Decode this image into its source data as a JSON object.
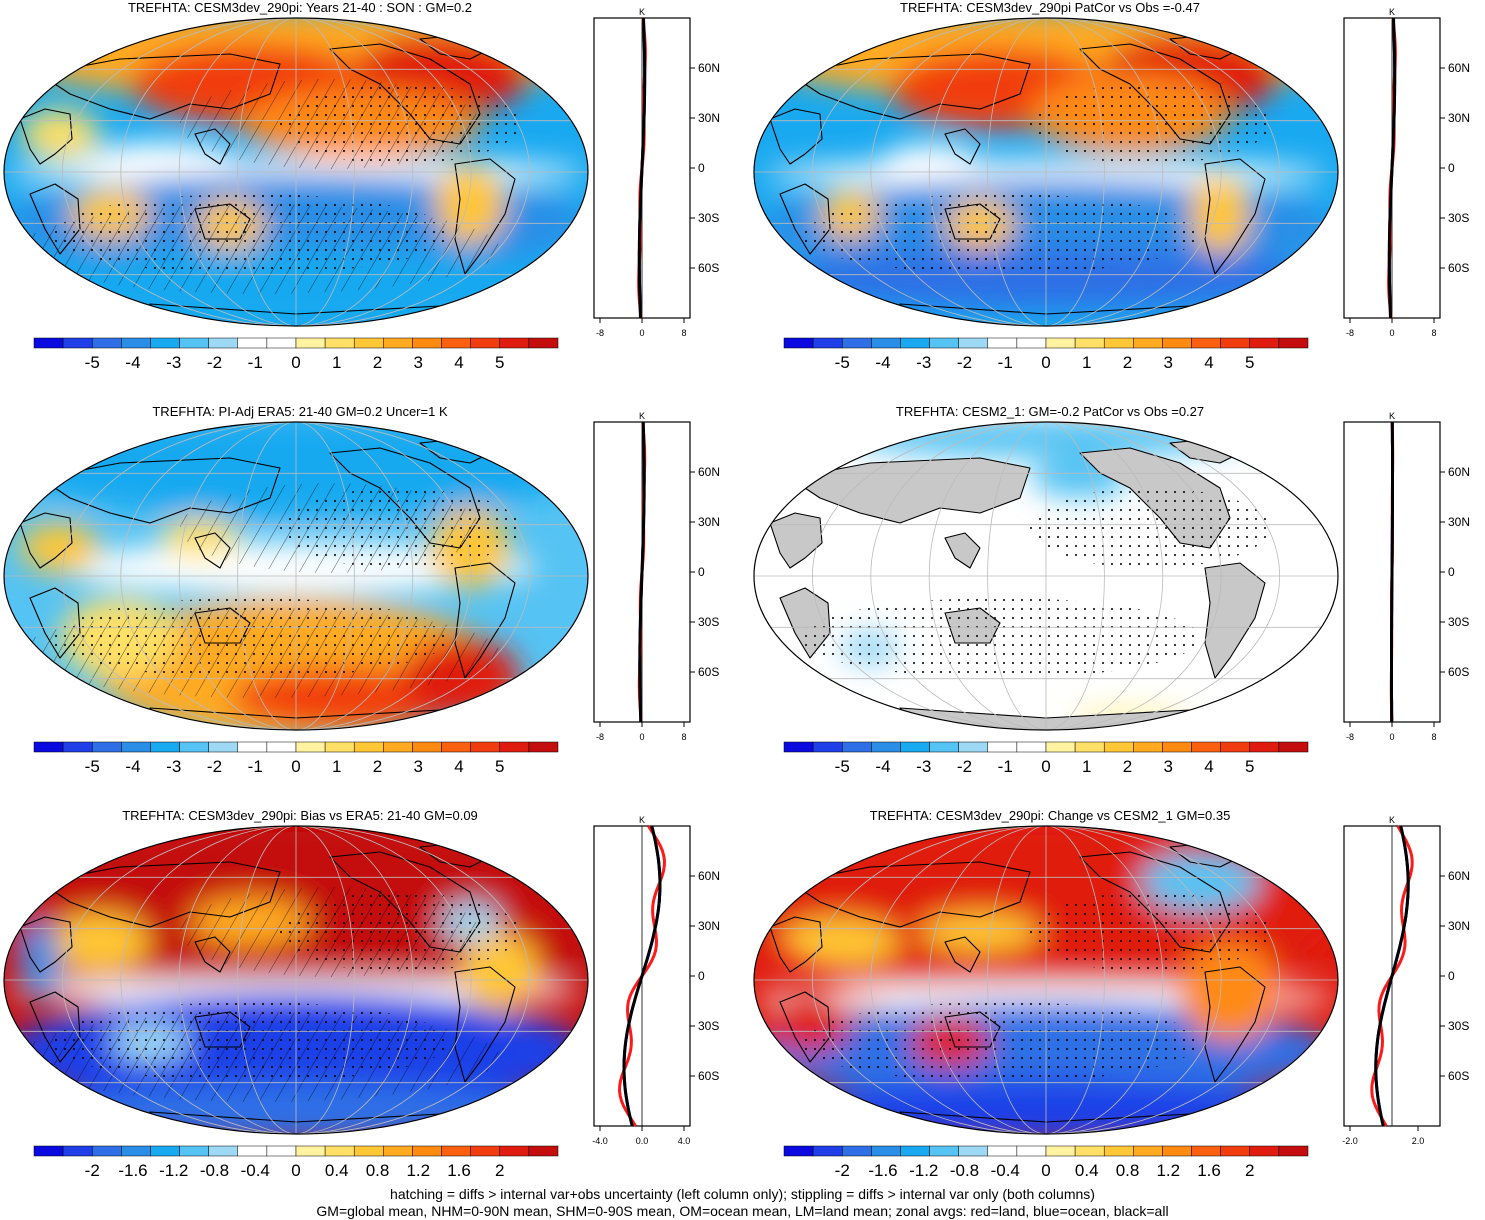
{
  "panels": [
    {
      "title": "TREFHTA: CESM3dev_290pi: Years 21-40 : SON : GM=0.2",
      "map_fill": "anomaly-left",
      "hatching": true,
      "stipple": true,
      "colorbar_labels": [
        "-5",
        "-4",
        "-3",
        "-2",
        "-1",
        "0",
        "1",
        "2",
        "3",
        "4",
        "5"
      ],
      "zonal": {
        "unit": "K",
        "xticks": [
          "-8",
          "0",
          "8"
        ],
        "lat_ticks": [
          "60N",
          "30N",
          "0",
          "30S",
          "60S"
        ]
      }
    },
    {
      "title": "TREFHTA: CESM3dev_290pi PatCor vs Obs =-0.47",
      "map_fill": "anomaly-right",
      "hatching": false,
      "stipple": true,
      "colorbar_labels": [
        "-5",
        "-4",
        "-3",
        "-2",
        "-1",
        "0",
        "1",
        "2",
        "3",
        "4",
        "5"
      ],
      "zonal": {
        "unit": "K",
        "xticks": [
          "-8",
          "0",
          "8"
        ],
        "lat_ticks": [
          "60N",
          "30N",
          "0",
          "30S",
          "60S"
        ]
      }
    },
    {
      "title": "TREFHTA: PI-Adj ERA5: 21-40 GM=0.2 Uncer=1 K",
      "map_fill": "obs",
      "hatching": true,
      "stipple": true,
      "colorbar_labels": [
        "-5",
        "-4",
        "-3",
        "-2",
        "-1",
        "0",
        "1",
        "2",
        "3",
        "4",
        "5"
      ],
      "zonal": {
        "unit": "K",
        "xticks": [
          "-8",
          "0",
          "8"
        ],
        "lat_ticks": [
          "60N",
          "30N",
          "0",
          "30S",
          "60S"
        ]
      }
    },
    {
      "title": "TREFHTA: CESM2_1: GM=-0.2 PatCor vs Obs =0.27",
      "map_fill": "neutral",
      "hatching": false,
      "stipple": true,
      "colorbar_labels": [
        "-5",
        "-4",
        "-3",
        "-2",
        "-1",
        "0",
        "1",
        "2",
        "3",
        "4",
        "5"
      ],
      "zonal": {
        "unit": "K",
        "xticks": [
          "-8",
          "0",
          "8"
        ],
        "lat_ticks": [
          "60N",
          "30N",
          "0",
          "30S",
          "60S"
        ]
      }
    },
    {
      "title": "TREFHTA: CESM3dev_290pi: Bias vs ERA5: 21-40  GM=0.09",
      "map_fill": "bias",
      "hatching": true,
      "stipple": true,
      "colorbar_labels": [
        "-2",
        "-1.6",
        "-1.2",
        "-0.8",
        "-0.4",
        "0",
        "0.4",
        "0.8",
        "1.2",
        "1.6",
        "2"
      ],
      "zonal": {
        "unit": "K",
        "xticks": [
          "-4.0",
          "0.0",
          "4.0"
        ],
        "lat_ticks": [
          "60N",
          "30N",
          "0",
          "30S",
          "60S"
        ]
      }
    },
    {
      "title": "TREFHTA: CESM3dev_290pi: Change vs CESM2_1 GM=0.35",
      "map_fill": "change",
      "hatching": false,
      "stipple": true,
      "colorbar_labels": [
        "-2",
        "-1.6",
        "-1.2",
        "-0.8",
        "-0.4",
        "0",
        "0.4",
        "0.8",
        "1.2",
        "1.6",
        "2"
      ],
      "zonal": {
        "unit": "K",
        "xticks": [
          "-2.0",
          "2.0"
        ],
        "lat_ticks": [
          "60N",
          "30N",
          "0",
          "30S",
          "60S"
        ]
      }
    }
  ],
  "palette": [
    "#0a0ae0",
    "#1f3fe8",
    "#2f6fe6",
    "#2b8ee6",
    "#19a9f0",
    "#55c3f3",
    "#9dd8f5",
    "#ffffff",
    "#ffffff",
    "#fff2a0",
    "#ffe066",
    "#ffc635",
    "#ffaa21",
    "#ff8a12",
    "#fb6010",
    "#f13c10",
    "#e01c10",
    "#c40d0d"
  ],
  "land_gray": "#c8c8c8",
  "line_colors": {
    "land": "#ff1a1a",
    "ocean": "#1a1aff",
    "all": "#000000"
  },
  "footnote": {
    "line1": "hatching = diffs > internal var+obs uncertainty (left column only); stippling = diffs > internal var only (both columns)",
    "line2": "GM=global mean, NHM=0-90N mean, SHM=0-90S mean, OM=ocean mean, LM=land mean; zonal avgs: red=land, blue=ocean, black=all"
  }
}
